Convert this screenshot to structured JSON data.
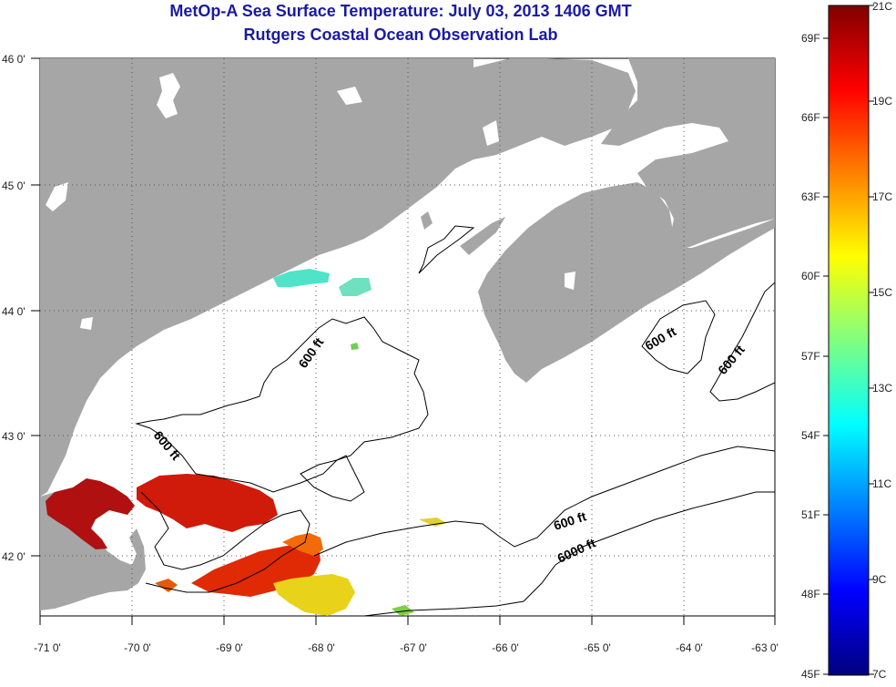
{
  "title": {
    "line1": "MetOp-A Sea Surface Temperature:  July 03, 2013 1406 GMT",
    "line2": "Rutgers Coastal Ocean Observation Lab"
  },
  "map": {
    "lon_ticks": [
      "-71 0'",
      "-70 0'",
      "-69 0'",
      "-68 0'",
      "-67 0'",
      "-66 0'",
      "-65 0'",
      "-64 0'",
      "-63 0'"
    ],
    "lat_ticks": [
      "46 0'",
      "45 0'",
      "44 0'",
      "43 0'",
      "42 0'"
    ],
    "land_color": "#a6a6a6",
    "grid": "dotted"
  },
  "contours": {
    "labels": [
      "600 ft",
      "600 ft",
      "600 ft",
      "600 ft",
      "600 ft",
      "6000 ft"
    ]
  },
  "colorbar": {
    "fahrenheit": [
      "69F",
      "66F",
      "63F",
      "60F",
      "57F",
      "54F",
      "51F",
      "48F",
      "45F"
    ],
    "celsius": [
      "21C",
      "19C",
      "17C",
      "15C",
      "13C",
      "11C",
      "9C",
      "7C"
    ],
    "colors": [
      "#000080",
      "#0000ff",
      "#0080ff",
      "#00ffff",
      "#80ff80",
      "#ffff00",
      "#ff8000",
      "#ff0000",
      "#800000"
    ]
  }
}
